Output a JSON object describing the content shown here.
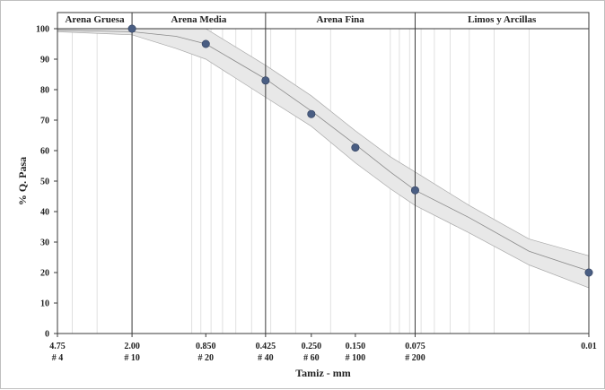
{
  "chart_data": {
    "type": "scatter",
    "xlabel": "Tamiz - mm",
    "ylabel": "% Q. Pasa",
    "x_scale": "log",
    "x_direction": "decreasing",
    "xlim": [
      4.75,
      0.01
    ],
    "ylim": [
      0,
      100
    ],
    "y_ticks": [
      0,
      10,
      20,
      30,
      40,
      50,
      60,
      70,
      80,
      90,
      100
    ],
    "x_ticks": [
      {
        "value": 4.75,
        "label": "4.75",
        "sieve": "# 4"
      },
      {
        "value": 2.0,
        "label": "2.00",
        "sieve": "# 10"
      },
      {
        "value": 0.85,
        "label": "0.850",
        "sieve": "# 20"
      },
      {
        "value": 0.425,
        "label": "0.425",
        "sieve": "# 40"
      },
      {
        "value": 0.25,
        "label": "0.250",
        "sieve": "# 60"
      },
      {
        "value": 0.15,
        "label": "0.150",
        "sieve": "# 100"
      },
      {
        "value": 0.075,
        "label": "0.075",
        "sieve": "# 200"
      },
      {
        "value": 0.01,
        "label": "0.01",
        "sieve": ""
      }
    ],
    "zones": [
      {
        "name": "Arena Gruesa",
        "from": 4.75,
        "to": 2.0
      },
      {
        "name": "Arena Media",
        "from": 2.0,
        "to": 0.425
      },
      {
        "name": "Arena Fina",
        "from": 0.425,
        "to": 0.075
      },
      {
        "name": "Limos y Arcillas",
        "from": 0.075,
        "to": 0.01
      }
    ],
    "series": [
      {
        "points": [
          {
            "x": 2.0,
            "y": 100
          },
          {
            "x": 0.85,
            "y": 95
          },
          {
            "x": 0.425,
            "y": 83
          },
          {
            "x": 0.25,
            "y": 72
          },
          {
            "x": 0.15,
            "y": 61
          },
          {
            "x": 0.075,
            "y": 47
          },
          {
            "x": 0.01,
            "y": 20
          }
        ]
      }
    ],
    "fit_band": {
      "center": [
        [
          4.75,
          99.5
        ],
        [
          2.0,
          99
        ],
        [
          1.2,
          97.5
        ],
        [
          0.85,
          95
        ],
        [
          0.425,
          83.5
        ],
        [
          0.25,
          73
        ],
        [
          0.15,
          62
        ],
        [
          0.1,
          53
        ],
        [
          0.075,
          47
        ],
        [
          0.04,
          38
        ],
        [
          0.02,
          27
        ],
        [
          0.01,
          20.5
        ]
      ],
      "upper": [
        [
          4.75,
          100
        ],
        [
          2.0,
          100
        ],
        [
          1.2,
          100
        ],
        [
          0.85,
          100
        ],
        [
          0.425,
          88
        ],
        [
          0.25,
          78
        ],
        [
          0.15,
          66.5
        ],
        [
          0.1,
          58
        ],
        [
          0.075,
          53
        ],
        [
          0.04,
          42
        ],
        [
          0.02,
          31
        ],
        [
          0.01,
          25.5
        ]
      ],
      "lower": [
        [
          4.75,
          99
        ],
        [
          2.0,
          98
        ],
        [
          1.2,
          93.5
        ],
        [
          0.85,
          90
        ],
        [
          0.425,
          77.5
        ],
        [
          0.25,
          68
        ],
        [
          0.15,
          56
        ],
        [
          0.1,
          47.5
        ],
        [
          0.075,
          42
        ],
        [
          0.04,
          33
        ],
        [
          0.02,
          22.5
        ],
        [
          0.01,
          15
        ]
      ]
    },
    "colors": {
      "marker": "#4a5e83",
      "band": "#e8e8e8",
      "band_edge": "#a9a9a9",
      "fit_line": "#8a8a8a",
      "grid": "#d9d9d9",
      "major_line": "#3a3a3a"
    }
  }
}
